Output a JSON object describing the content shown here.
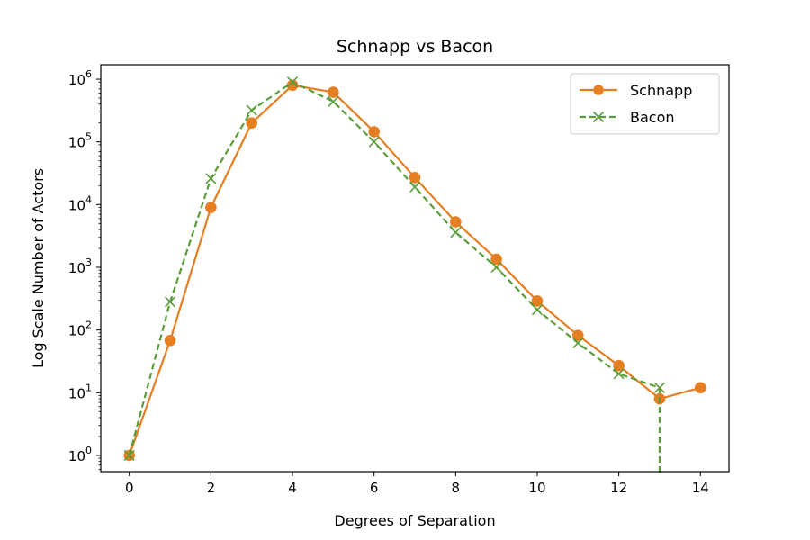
{
  "chart_data": {
    "type": "line",
    "title": "Schnapp vs Bacon",
    "xlabel": "Degrees of Separation",
    "ylabel": "Log Scale Number of Actors",
    "yscale": "log",
    "xlim": [
      -0.7,
      14.7
    ],
    "ylim": [
      0.55,
      1700000
    ],
    "xticks": [
      0,
      2,
      4,
      6,
      8,
      10,
      12,
      14
    ],
    "xtick_labels": [
      "0",
      "2",
      "4",
      "6",
      "8",
      "10",
      "12",
      "14"
    ],
    "yticks": [
      1,
      10,
      100,
      1000,
      10000,
      100000,
      1000000
    ],
    "ytick_labels": [
      {
        "base": "10",
        "exp": "0"
      },
      {
        "base": "10",
        "exp": "1"
      },
      {
        "base": "10",
        "exp": "2"
      },
      {
        "base": "10",
        "exp": "3"
      },
      {
        "base": "10",
        "exp": "4"
      },
      {
        "base": "10",
        "exp": "5"
      },
      {
        "base": "10",
        "exp": "6"
      }
    ],
    "grid": false,
    "legend_position": "top-right",
    "series": [
      {
        "name": "Schnapp",
        "color": "#e67e22",
        "linestyle": "solid",
        "marker": "circle",
        "x": [
          0,
          1,
          2,
          3,
          4,
          5,
          6,
          7,
          8,
          9,
          10,
          11,
          12,
          13,
          14
        ],
        "y": [
          1,
          68,
          9000,
          200000,
          800000,
          620000,
          145000,
          27000,
          5300,
          1350,
          290,
          82,
          27,
          8,
          12
        ]
      },
      {
        "name": "Bacon",
        "color": "#5a9e3a",
        "linestyle": "dashed",
        "marker": "x",
        "x": [
          0,
          1,
          2,
          3,
          4,
          5,
          6,
          7,
          8,
          9,
          10,
          11,
          12,
          13
        ],
        "y": [
          1,
          280,
          26000,
          320000,
          900000,
          440000,
          100000,
          19000,
          3600,
          1000,
          210,
          62,
          20,
          12
        ],
        "drops_to_zero_after": true
      }
    ]
  }
}
